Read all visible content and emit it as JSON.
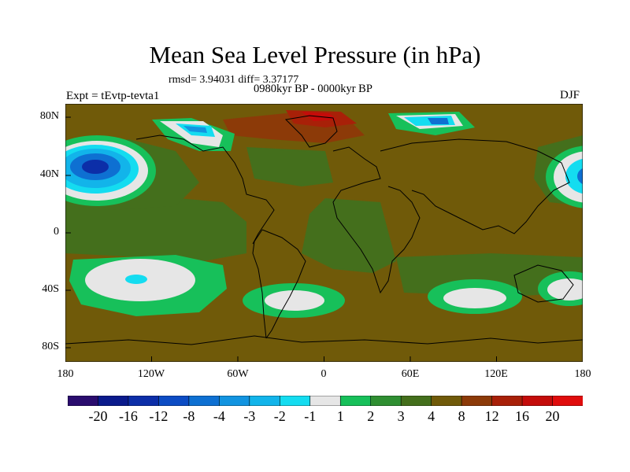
{
  "title": "Mean Sea Level Pressure (in hPa)",
  "stats": "rmsd= 3.94031 diff= 3.37177",
  "period": "0980kyr BP - 0000kyr BP",
  "experiment": "Expt = tEvtp-tevta1",
  "season": "DJF",
  "map": {
    "lat_labels": [
      "80N",
      "40N",
      "0",
      "40S",
      "80S"
    ],
    "lon_labels": [
      "180",
      "120W",
      "60W",
      "0",
      "60E",
      "120E",
      "180"
    ],
    "background_color": "#705a09",
    "features": [
      {
        "name": "North Pacific low",
        "level": "-16"
      },
      {
        "name": "Greenland high",
        "level": "16"
      },
      {
        "name": "South Pacific anomaly",
        "level": "-2"
      },
      {
        "name": "South Atlantic anomaly",
        "level": "1"
      },
      {
        "name": "South Indian anomaly",
        "level": "1"
      }
    ]
  },
  "colorbar": {
    "labels": [
      "-20",
      "-16",
      "-12",
      "-8",
      "-4",
      "-3",
      "-2",
      "-1",
      "1",
      "2",
      "3",
      "4",
      "8",
      "12",
      "16",
      "20"
    ],
    "colors": [
      "#2a0c6e",
      "#0a1a8c",
      "#0c2ea8",
      "#0c4cc4",
      "#0e70d2",
      "#1294e0",
      "#12b4ea",
      "#14dcf0",
      "#e6e6e6",
      "#17c05a",
      "#2f8f32",
      "#446f1c",
      "#705a09",
      "#8c3a08",
      "#a82008",
      "#c40c0a",
      "#e00c0c"
    ]
  }
}
